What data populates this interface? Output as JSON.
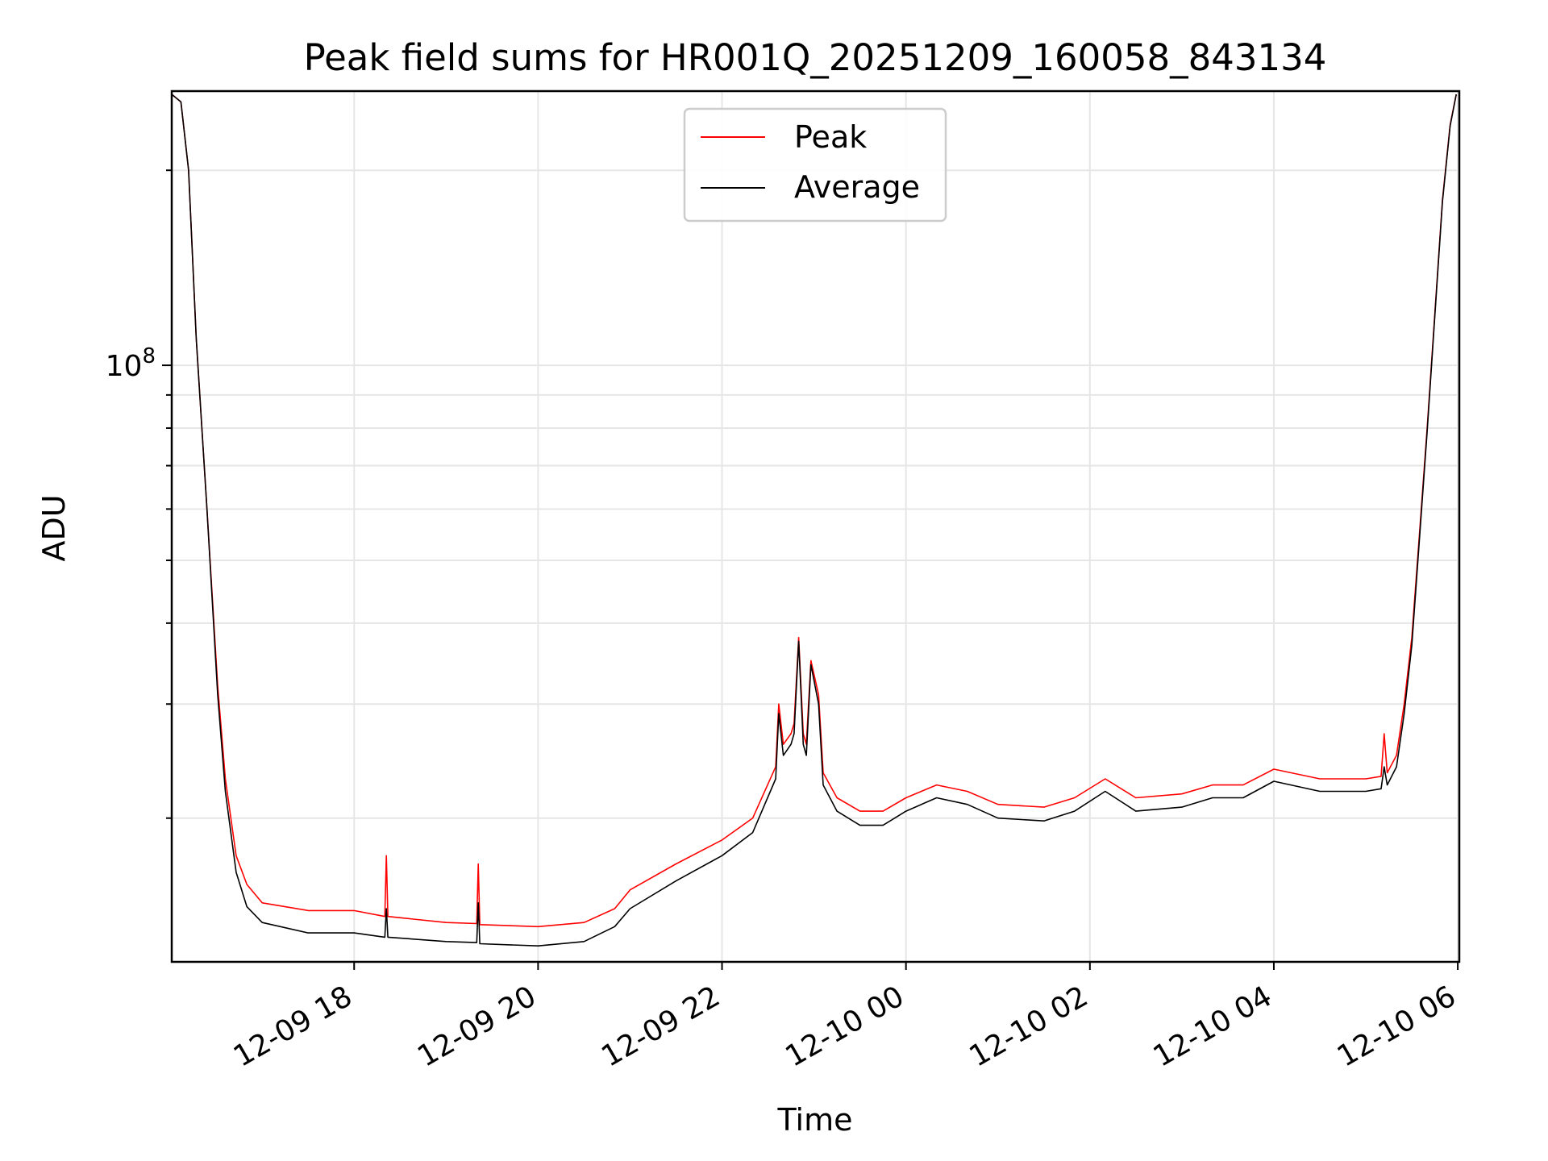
{
  "chart_data": {
    "type": "line",
    "title": "Peak field sums for HR001Q_20251209_160058_843134",
    "xlabel": "Time",
    "ylabel": "ADU",
    "y_scale": "log",
    "x_range": [
      "12-09 16:01",
      "12-10 06:01"
    ],
    "y_range": [
      12000000,
      265000000
    ],
    "grid": true,
    "legend_position": "top-center",
    "x_ticks": [
      "12-09 18",
      "12-09 20",
      "12-09 22",
      "12-10 00",
      "12-10 02",
      "12-10 04",
      "12-10 06"
    ],
    "y_tick_labels": [
      {
        "base": "10",
        "exponent": "8"
      }
    ],
    "y_minor_ticks": [
      20000000,
      30000000,
      40000000,
      50000000,
      60000000,
      70000000,
      80000000,
      90000000,
      200000000
    ],
    "series": [
      {
        "name": "Peak",
        "color": "#ff0000",
        "points": [
          [
            "12-09 16:01",
            262000000
          ],
          [
            "12-09 16:07",
            255000000
          ],
          [
            "12-09 16:12",
            200000000
          ],
          [
            "12-09 16:17",
            110000000
          ],
          [
            "12-09 16:24",
            60000000
          ],
          [
            "12-09 16:31",
            32000000
          ],
          [
            "12-09 16:36",
            23000000
          ],
          [
            "12-09 16:43",
            17500000
          ],
          [
            "12-09 16:50",
            15800000
          ],
          [
            "12-09 17:00",
            14800000
          ],
          [
            "12-09 17:30",
            14400000
          ],
          [
            "12-09 18:00",
            14400000
          ],
          [
            "12-09 18:20",
            14100000
          ],
          [
            "12-09 18:21",
            17500000
          ],
          [
            "12-09 18:22",
            14100000
          ],
          [
            "12-09 19:00",
            13800000
          ],
          [
            "12-09 19:20",
            13750000
          ],
          [
            "12-09 19:21",
            17000000
          ],
          [
            "12-09 19:22",
            13700000
          ],
          [
            "12-09 20:00",
            13600000
          ],
          [
            "12-09 20:30",
            13800000
          ],
          [
            "12-09 20:50",
            14500000
          ],
          [
            "12-09 21:00",
            15500000
          ],
          [
            "12-09 21:30",
            17000000
          ],
          [
            "12-09 22:00",
            18500000
          ],
          [
            "12-09 22:20",
            20000000
          ],
          [
            "12-09 22:35",
            24000000
          ],
          [
            "12-09 22:37",
            30000000
          ],
          [
            "12-09 22:40",
            26000000
          ],
          [
            "12-09 22:45",
            27000000
          ],
          [
            "12-09 22:47",
            28000000
          ],
          [
            "12-09 22:50",
            38000000
          ],
          [
            "12-09 22:53",
            27000000
          ],
          [
            "12-09 22:55",
            26000000
          ],
          [
            "12-09 22:58",
            35000000
          ],
          [
            "12-09 23:03",
            31000000
          ],
          [
            "12-09 23:06",
            23500000
          ],
          [
            "12-09 23:15",
            21500000
          ],
          [
            "12-09 23:30",
            20500000
          ],
          [
            "12-09 23:45",
            20500000
          ],
          [
            "12-10 00:00",
            21500000
          ],
          [
            "12-10 00:20",
            22500000
          ],
          [
            "12-10 00:40",
            22000000
          ],
          [
            "12-10 01:00",
            21000000
          ],
          [
            "12-10 01:30",
            20800000
          ],
          [
            "12-10 01:50",
            21500000
          ],
          [
            "12-10 02:10",
            23000000
          ],
          [
            "12-10 02:30",
            21500000
          ],
          [
            "12-10 03:00",
            21800000
          ],
          [
            "12-10 03:20",
            22500000
          ],
          [
            "12-10 03:40",
            22500000
          ],
          [
            "12-10 04:00",
            23800000
          ],
          [
            "12-10 04:30",
            23000000
          ],
          [
            "12-10 05:00",
            23000000
          ],
          [
            "12-10 05:10",
            23200000
          ],
          [
            "12-10 05:12",
            27000000
          ],
          [
            "12-10 05:14",
            23500000
          ],
          [
            "12-10 05:20",
            25000000
          ],
          [
            "12-10 05:25",
            30000000
          ],
          [
            "12-10 05:30",
            38000000
          ],
          [
            "12-10 05:35",
            55000000
          ],
          [
            "12-10 05:40",
            80000000
          ],
          [
            "12-10 05:45",
            120000000
          ],
          [
            "12-10 05:50",
            180000000
          ],
          [
            "12-10 05:55",
            235000000
          ],
          [
            "12-10 05:59",
            262000000
          ]
        ]
      },
      {
        "name": "Average",
        "color": "#000000",
        "points": [
          [
            "12-09 16:01",
            262000000
          ],
          [
            "12-09 16:07",
            255000000
          ],
          [
            "12-09 16:12",
            200000000
          ],
          [
            "12-09 16:17",
            110000000
          ],
          [
            "12-09 16:24",
            60000000
          ],
          [
            "12-09 16:31",
            31000000
          ],
          [
            "12-09 16:36",
            22000000
          ],
          [
            "12-09 16:43",
            16500000
          ],
          [
            "12-09 16:50",
            14600000
          ],
          [
            "12-09 17:00",
            13800000
          ],
          [
            "12-09 17:30",
            13300000
          ],
          [
            "12-09 18:00",
            13300000
          ],
          [
            "12-09 18:20",
            13100000
          ],
          [
            "12-09 18:21",
            14500000
          ],
          [
            "12-09 18:22",
            13100000
          ],
          [
            "12-09 19:00",
            12900000
          ],
          [
            "12-09 19:20",
            12850000
          ],
          [
            "12-09 19:21",
            14800000
          ],
          [
            "12-09 19:22",
            12800000
          ],
          [
            "12-09 20:00",
            12700000
          ],
          [
            "12-09 20:30",
            12900000
          ],
          [
            "12-09 20:50",
            13600000
          ],
          [
            "12-09 21:00",
            14500000
          ],
          [
            "12-09 21:30",
            16000000
          ],
          [
            "12-09 22:00",
            17500000
          ],
          [
            "12-09 22:20",
            19000000
          ],
          [
            "12-09 22:35",
            23000000
          ],
          [
            "12-09 22:37",
            29000000
          ],
          [
            "12-09 22:40",
            25000000
          ],
          [
            "12-09 22:45",
            26000000
          ],
          [
            "12-09 22:47",
            27000000
          ],
          [
            "12-09 22:50",
            37500000
          ],
          [
            "12-09 22:53",
            26000000
          ],
          [
            "12-09 22:55",
            25000000
          ],
          [
            "12-09 22:58",
            34500000
          ],
          [
            "12-09 23:03",
            30000000
          ],
          [
            "12-09 23:06",
            22500000
          ],
          [
            "12-09 23:15",
            20500000
          ],
          [
            "12-09 23:30",
            19500000
          ],
          [
            "12-09 23:45",
            19500000
          ],
          [
            "12-10 00:00",
            20500000
          ],
          [
            "12-10 00:20",
            21500000
          ],
          [
            "12-10 00:40",
            21000000
          ],
          [
            "12-10 01:00",
            20000000
          ],
          [
            "12-10 01:30",
            19800000
          ],
          [
            "12-10 01:50",
            20500000
          ],
          [
            "12-10 02:10",
            22000000
          ],
          [
            "12-10 02:30",
            20500000
          ],
          [
            "12-10 03:00",
            20800000
          ],
          [
            "12-10 03:20",
            21500000
          ],
          [
            "12-10 03:40",
            21500000
          ],
          [
            "12-10 04:00",
            22800000
          ],
          [
            "12-10 04:30",
            22000000
          ],
          [
            "12-10 05:00",
            22000000
          ],
          [
            "12-10 05:10",
            22200000
          ],
          [
            "12-10 05:12",
            24000000
          ],
          [
            "12-10 05:14",
            22500000
          ],
          [
            "12-10 05:20",
            24000000
          ],
          [
            "12-10 05:25",
            29000000
          ],
          [
            "12-10 05:30",
            37000000
          ],
          [
            "12-10 05:35",
            54000000
          ],
          [
            "12-10 05:40",
            79000000
          ],
          [
            "12-10 05:45",
            119000000
          ],
          [
            "12-10 05:50",
            179000000
          ],
          [
            "12-10 05:55",
            234000000
          ],
          [
            "12-10 05:59",
            262000000
          ]
        ]
      }
    ]
  }
}
